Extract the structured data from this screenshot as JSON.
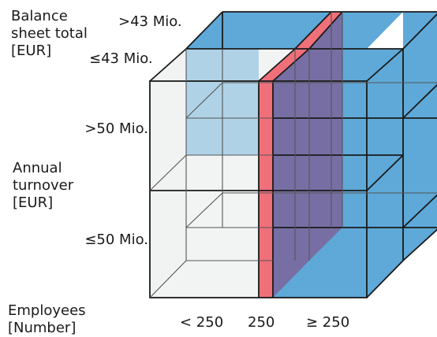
{
  "axis_labels": {
    "balance_sheet": [
      "Balance",
      "sheet total",
      "[EUR]"
    ],
    "annual_turnover": [
      "Annual",
      "turnover",
      "[EUR]"
    ],
    "employees": [
      "Employees",
      "[Number]"
    ]
  },
  "balance_ticks": {
    "high": ">43 Mio.",
    "low": "≤43 Mio."
  },
  "turnover_ticks": {
    "high": ">50 Mio.",
    "low": "≤50 Mio."
  },
  "employee_ticks": {
    "small": "< 250",
    "exact": "250",
    "large": "≥ 250"
  },
  "colors": {
    "blue": "#5ea9d8",
    "red": "#f0707a",
    "overlap": "#786ba0",
    "light": "#f1f3f2",
    "edge": "#1a1a1a"
  }
}
